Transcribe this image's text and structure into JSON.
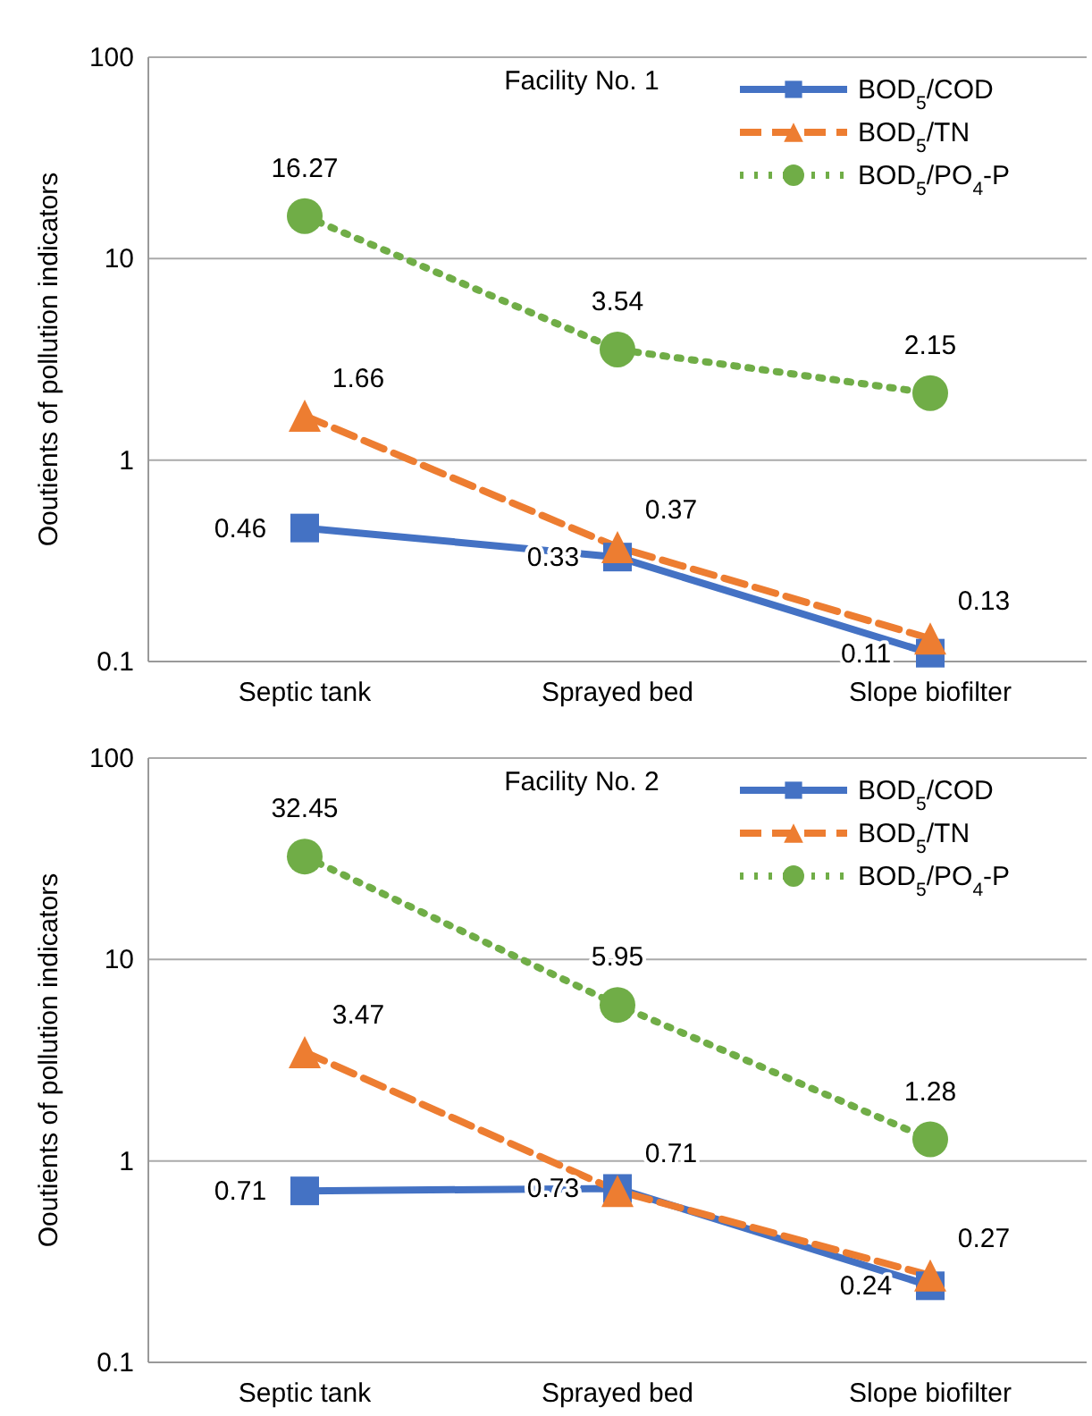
{
  "chart_data": [
    {
      "type": "line",
      "title": "Facility No. 1",
      "ylabel": "Ooutients of pollution indicators",
      "categories": [
        "Septic tank",
        "Sprayed bed",
        "Slope biofilter"
      ],
      "log": "y",
      "ylim": [
        0.1,
        100
      ],
      "yticks": [
        0.1,
        1,
        10,
        100
      ],
      "grid": "y",
      "legend": "top right",
      "data_labels": true,
      "series": [
        {
          "name": "BOD$_{5}$/COD",
          "color": "#4472c4",
          "values": [
            0.46,
            0.33,
            0.11
          ],
          "marker": "square",
          "line_style": "solid"
        },
        {
          "name": "BOD$_{5}$/TN",
          "color": "#ed7d31",
          "values": [
            1.66,
            0.37,
            0.13
          ],
          "marker": "triangle",
          "line_style": "dashed"
        },
        {
          "name": "BOD$_{5}$/PO$_{4}$-P",
          "color": "#70ad47",
          "values": [
            16.27,
            3.54,
            2.15
          ],
          "marker": "circle",
          "line_style": "dotted"
        }
      ]
    },
    {
      "type": "line",
      "title": "Facility No. 2",
      "ylabel": "Ooutients of pollution indicators",
      "categories": [
        "Septic tank",
        "Sprayed bed",
        "Slope biofilter"
      ],
      "log": "y",
      "ylim": [
        0.1,
        100
      ],
      "yticks": [
        0.1,
        1,
        10,
        100
      ],
      "grid": "y",
      "legend": "top right",
      "data_labels": true,
      "series": [
        {
          "name": "BOD$_{5}$/COD",
          "color": "#4472c4",
          "values": [
            0.71,
            0.73,
            0.24
          ],
          "marker": "square",
          "line_style": "solid"
        },
        {
          "name": "BOD$_{5}$/TN",
          "color": "#ed7d31",
          "values": [
            3.47,
            0.71,
            0.27
          ],
          "marker": "triangle",
          "line_style": "dashed"
        },
        {
          "name": "BOD$_{5}$/PO$_{4}$-P",
          "color": "#70ad47",
          "values": [
            32.45,
            5.95,
            1.28
          ],
          "marker": "circle",
          "line_style": "dotted"
        }
      ]
    }
  ]
}
